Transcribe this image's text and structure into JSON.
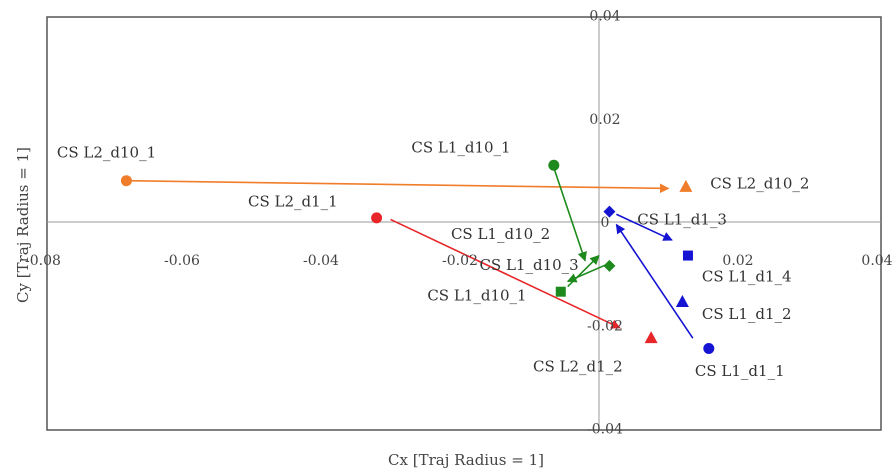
{
  "chart_data": {
    "type": "scatter",
    "title": "",
    "xlabel": "Cx [Traj Radius = 1]",
    "ylabel": "Cy [Traj Radius = 1]",
    "xlim": [
      -0.08,
      0.04
    ],
    "ylim": [
      -0.04,
      0.04
    ],
    "x_ticks": [
      -0.08,
      -0.06,
      -0.04,
      -0.02,
      0.02,
      0.04
    ],
    "x_tick_labels": [
      "-0.08",
      "-0.06",
      "-0.04",
      "-0.02",
      "0.02",
      "0.04"
    ],
    "y_ticks": [
      0.04,
      0.02,
      0,
      -0.02,
      -0.04
    ],
    "y_tick_labels": [
      "0.04",
      "0.02",
      "0",
      "-0.02",
      "-0.04"
    ],
    "grid": false,
    "colors": {
      "orange": "#f07d2a",
      "red": "#e8262a",
      "green": "#1e8a1e",
      "blue": "#1414d2"
    },
    "points": [
      {
        "label": "CS L2_d10_1",
        "x": -0.068,
        "y": 0.008,
        "marker": "circle",
        "color": "orange"
      },
      {
        "label": "CS L2_d10_2",
        "x": 0.0125,
        "y": 0.0068,
        "marker": "triangle",
        "color": "orange"
      },
      {
        "label": "CS L2_d1_1",
        "x": -0.032,
        "y": 0.0008,
        "marker": "circle",
        "color": "red"
      },
      {
        "label": "CS L2_d1_2",
        "x": 0.0075,
        "y": -0.0225,
        "marker": "triangle",
        "color": "red"
      },
      {
        "label": "CS L1_d10_1",
        "x": -0.0065,
        "y": 0.011,
        "marker": "circle",
        "color": "green"
      },
      {
        "label": "CS L1_d10_2",
        "x": 0.0015,
        "y": -0.0085,
        "marker": "diamond",
        "color": "green"
      },
      {
        "label": "CS L1_d10_3",
        "x": -0.0055,
        "y": -0.0135,
        "marker": "square",
        "color": "green"
      },
      {
        "label": "CS L1_d1_1",
        "x": 0.0158,
        "y": -0.0245,
        "marker": "circle",
        "color": "blue"
      },
      {
        "label": "CS L1_d1_2",
        "x": 0.012,
        "y": -0.0155,
        "marker": "triangle",
        "color": "blue"
      },
      {
        "label": "CS L1_d1_3",
        "x": 0.0015,
        "y": 0.002,
        "marker": "diamond",
        "color": "blue"
      },
      {
        "label": "CS L1_d1_4",
        "x": 0.0128,
        "y": -0.0065,
        "marker": "square",
        "color": "blue"
      }
    ],
    "arrows": [
      {
        "from": [
          -0.068,
          0.008
        ],
        "to": [
          0.01,
          0.0065
        ],
        "color": "orange"
      },
      {
        "from": [
          -0.03,
          0.0005
        ],
        "to": [
          0.003,
          -0.0205
        ],
        "color": "red"
      },
      {
        "from": [
          -0.0065,
          0.0105
        ],
        "to": [
          -0.002,
          -0.0075
        ],
        "color": "green"
      },
      {
        "from": [
          0.0015,
          -0.008
        ],
        "to": [
          -0.0045,
          -0.0115
        ],
        "color": "green"
      },
      {
        "from": [
          -0.0045,
          -0.0125
        ],
        "to": [
          0.0,
          -0.0065
        ],
        "color": "green"
      },
      {
        "from": [
          0.0025,
          0.0015
        ],
        "to": [
          0.0105,
          -0.0035
        ],
        "color": "blue"
      },
      {
        "from": [
          0.0135,
          -0.0225
        ],
        "to": [
          0.0025,
          -0.0005
        ],
        "color": "blue"
      }
    ],
    "text_labels": [
      {
        "text": "CS L2_d10_1",
        "x": -0.078,
        "y": 0.0125,
        "anchor": "start"
      },
      {
        "text": "CS L2_d10_2",
        "x": 0.016,
        "y": 0.0065,
        "anchor": "start"
      },
      {
        "text": "CS L2_d1_1",
        "x": -0.0505,
        "y": 0.003,
        "anchor": "start"
      },
      {
        "text": "CS L2_d1_2",
        "x": -0.0095,
        "y": -0.029,
        "anchor": "start"
      },
      {
        "text": "CS L1_d10_1",
        "x": -0.027,
        "y": 0.0135,
        "anchor": "start"
      },
      {
        "text": "CS L1_d10_2",
        "x": -0.0213,
        "y": -0.0033,
        "anchor": "start"
      },
      {
        "text": "CS L1_d10_3",
        "x": -0.0172,
        "y": -0.0093,
        "anchor": "start"
      },
      {
        "text": "CS L1_d10_1",
        "x": -0.0247,
        "y": -0.0152,
        "anchor": "start"
      },
      {
        "text": "CS L1_d1_3",
        "x": 0.0055,
        "y": -0.0005,
        "anchor": "start"
      },
      {
        "text": "CS L1_d1_4",
        "x": 0.0148,
        "y": -0.0115,
        "anchor": "start"
      },
      {
        "text": "CS L1_d1_2",
        "x": 0.0148,
        "y": -0.0188,
        "anchor": "start"
      },
      {
        "text": "CS L1_d1_1",
        "x": 0.0138,
        "y": -0.0298,
        "anchor": "start"
      }
    ]
  }
}
